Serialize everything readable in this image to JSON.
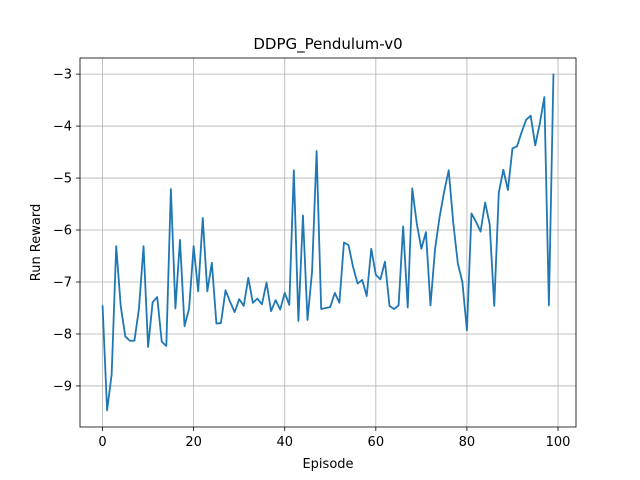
{
  "chart_data": {
    "type": "line",
    "title": "DDPG_Pendulum-v0",
    "xlabel": "Episode",
    "ylabel": "Run Reward",
    "xlim": [
      -4.95,
      103.95
    ],
    "ylim": [
      -9.79,
      -2.69
    ],
    "xticks": [
      0,
      20,
      40,
      60,
      80,
      100
    ],
    "xtick_labels": [
      "0",
      "20",
      "40",
      "60",
      "80",
      "100"
    ],
    "yticks": [
      -9,
      -8,
      -7,
      -6,
      -5,
      -4,
      -3
    ],
    "ytick_labels": [
      "−9",
      "−8",
      "−7",
      "−6",
      "−5",
      "−4",
      "−3"
    ],
    "grid": true,
    "legend": "none",
    "series": [
      {
        "color": "#1f77b4",
        "x": [
          0,
          1,
          2,
          3,
          4,
          5,
          6,
          7,
          8,
          9,
          10,
          11,
          12,
          13,
          14,
          15,
          16,
          17,
          18,
          19,
          20,
          21,
          22,
          23,
          24,
          25,
          26,
          27,
          28,
          29,
          30,
          31,
          32,
          33,
          34,
          35,
          36,
          37,
          38,
          39,
          40,
          41,
          42,
          43,
          44,
          45,
          46,
          47,
          48,
          49,
          50,
          51,
          52,
          53,
          54,
          55,
          56,
          57,
          58,
          59,
          60,
          61,
          62,
          63,
          64,
          65,
          66,
          67,
          68,
          69,
          70,
          71,
          72,
          73,
          74,
          75,
          76,
          77,
          78,
          79,
          80,
          81,
          82,
          83,
          84,
          85,
          86,
          87,
          88,
          89,
          90,
          91,
          92,
          93,
          94,
          95,
          96,
          97,
          98,
          99
        ],
        "values": [
          -7.45,
          -9.47,
          -8.78,
          -6.31,
          -7.47,
          -8.05,
          -8.13,
          -8.13,
          -7.51,
          -6.31,
          -8.25,
          -7.39,
          -7.29,
          -8.15,
          -8.23,
          -5.21,
          -7.51,
          -6.19,
          -7.85,
          -7.51,
          -6.31,
          -7.18,
          -5.77,
          -7.18,
          -6.63,
          -7.8,
          -7.79,
          -7.16,
          -7.38,
          -7.58,
          -7.33,
          -7.46,
          -6.92,
          -7.4,
          -7.32,
          -7.43,
          -7.01,
          -7.56,
          -7.35,
          -7.53,
          -7.21,
          -7.44,
          -4.85,
          -7.75,
          -5.72,
          -7.73,
          -6.8,
          -4.48,
          -7.52,
          -7.5,
          -7.48,
          -7.21,
          -7.4,
          -6.24,
          -6.29,
          -6.71,
          -7.03,
          -6.96,
          -7.27,
          -6.36,
          -6.86,
          -6.95,
          -6.61,
          -7.46,
          -7.52,
          -7.45,
          -5.93,
          -7.49,
          -5.2,
          -5.88,
          -6.36,
          -6.04,
          -7.45,
          -6.37,
          -5.75,
          -5.26,
          -4.85,
          -5.86,
          -6.64,
          -7.0,
          -7.93,
          -5.68,
          -5.84,
          -6.03,
          -5.47,
          -5.89,
          -7.46,
          -5.28,
          -4.84,
          -5.23,
          -4.43,
          -4.39,
          -4.12,
          -3.88,
          -3.8,
          -4.37,
          -3.95,
          -3.44,
          -7.45,
          -2.99
        ]
      }
    ]
  }
}
